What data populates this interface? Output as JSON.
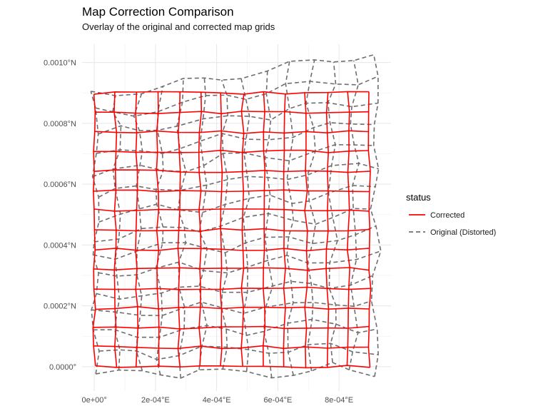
{
  "chart_data": {
    "type": "line",
    "title": "Map Correction Comparison",
    "subtitle": "Overlay of the original and corrected map grids",
    "xlabel": "",
    "ylabel": "",
    "xlim": [
      -4e-05,
      0.00097
    ],
    "ylim": [
      -8e-05,
      0.00106
    ],
    "x_ticks": [
      {
        "value": 0.0,
        "label": "0e+00°"
      },
      {
        "value": 0.0002,
        "label": "2e-04°E"
      },
      {
        "value": 0.0004,
        "label": "4e-04°E"
      },
      {
        "value": 0.0006,
        "label": "6e-04°E"
      },
      {
        "value": 0.0008,
        "label": "8e-04°E"
      }
    ],
    "y_ticks": [
      {
        "value": 0.0,
        "label": "0.0000°"
      },
      {
        "value": 0.0002,
        "label": "0.0002°N"
      },
      {
        "value": 0.0004,
        "label": "0.0004°N"
      },
      {
        "value": 0.0006,
        "label": "0.0006°N"
      },
      {
        "value": 0.0008,
        "label": "0.0008°N"
      },
      {
        "value": 0.001,
        "label": "0.0010°N"
      }
    ],
    "grid": true,
    "legend": {
      "title": "status",
      "position": "right",
      "entries": [
        {
          "label": "Corrected",
          "color": "#ff0000",
          "dash": "solid"
        },
        {
          "label": "Original (Distorted)",
          "color": "#6e6e6e",
          "dash": "dashed"
        }
      ]
    },
    "grids": {
      "columns": 14,
      "rows": 15,
      "corrected": {
        "x_min": 0.0,
        "x_max": 0.0009,
        "y_min": 0.0,
        "y_max": 0.0009,
        "jitter_x": 4.5e-06,
        "jitter_y": 4.5e-06
      },
      "original": {
        "x_min": 5e-06,
        "x_max": 0.00092,
        "y_bottom_left": -2.5e-05,
        "y_bottom_right": -1e-05,
        "y_top_left": 0.00089,
        "y_top_right": 0.00103,
        "wave_x": 1.2e-05,
        "wave_y": 1.8e-05
      }
    }
  }
}
